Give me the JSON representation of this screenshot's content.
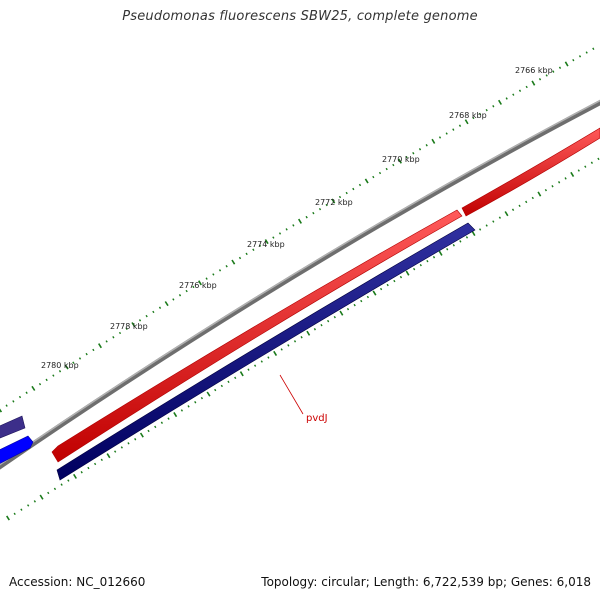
{
  "title": "Pseudomonas fluorescens SBW25, complete genome",
  "footer": {
    "accession_label": "Accession:",
    "accession": "NC_012660",
    "topology_label": "Topology:",
    "topology": "circular",
    "length_label": "Length:",
    "length": "6,722,539 bp",
    "genes_label": "Genes:",
    "genes": "6,018"
  },
  "scale_labels": [
    "2766 kbp",
    "2768 kbp",
    "2770 kbp",
    "2772 kbp",
    "2774 kbp",
    "2776 kbp",
    "2778 kbp",
    "2780 kbp"
  ],
  "gene_label": "pvdJ",
  "colors": {
    "backbone": "#8c8c8c",
    "forward_gene": "#ff0000",
    "reverse_gene": "#000080",
    "neighbor_gene_light": "#3f2f8f",
    "neighbor_gene_bright": "#0000ff",
    "tick": "#1a7a1a",
    "gene_label": "#cc0000"
  }
}
